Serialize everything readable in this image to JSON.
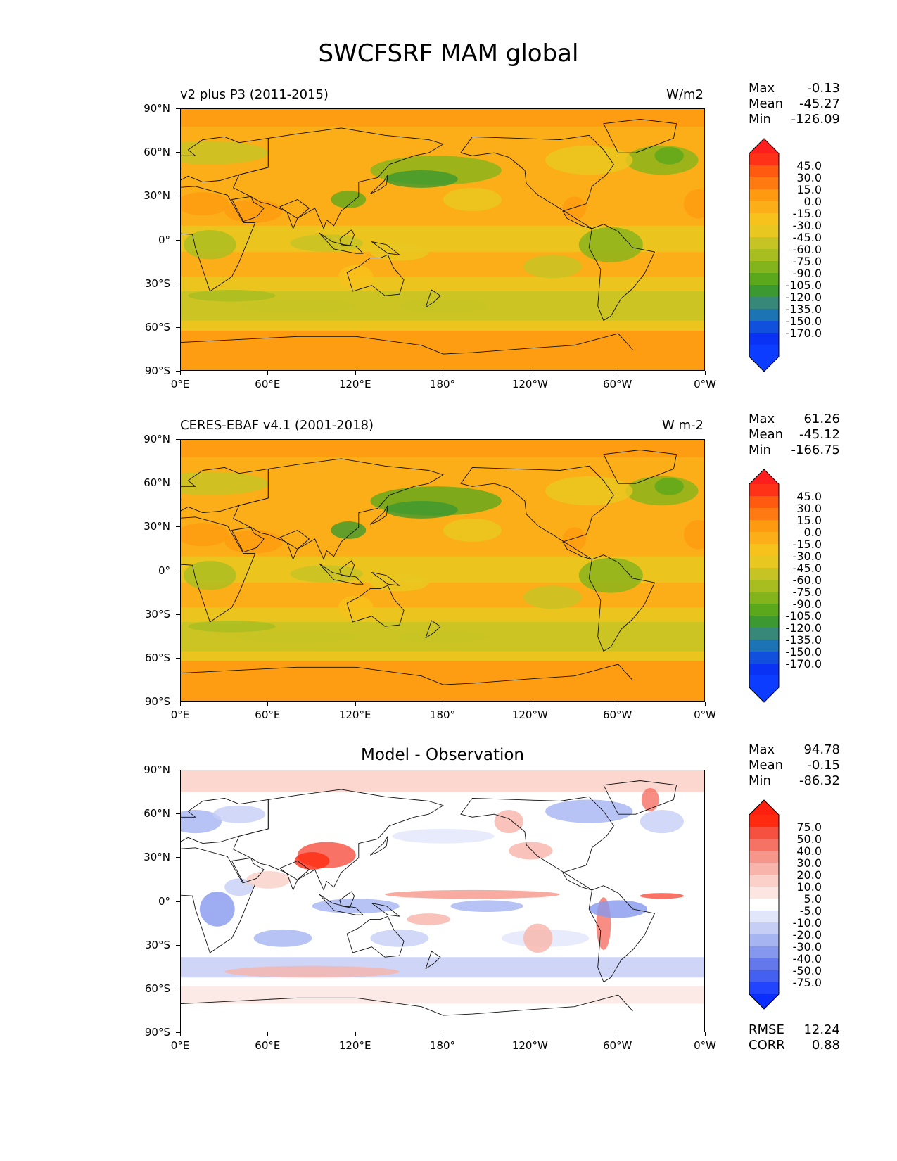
{
  "figure": {
    "title": "SWCFSRF MAM global"
  },
  "axes": {
    "yticks": [
      "90°N",
      "60°N",
      "30°N",
      "0°",
      "30°S",
      "60°S",
      "90°S"
    ],
    "xticks": [
      "0°E",
      "60°E",
      "120°E",
      "180°",
      "120°W",
      "60°W",
      "0°W"
    ]
  },
  "panels": [
    {
      "id": "test",
      "left_label": "v2 plus P3 (2011-2015)",
      "right_label": "W/m2",
      "center_title": "",
      "stats": [
        {
          "k": "Max",
          "v": "-0.13"
        },
        {
          "k": "Mean",
          "v": "-45.27"
        },
        {
          "k": "Min",
          "v": "-126.09"
        }
      ],
      "colorbar_levels": [
        "45.0",
        "30.0",
        "15.0",
        "0.0",
        "-15.0",
        "-30.0",
        "-45.0",
        "-60.0",
        "-75.0",
        "-90.0",
        "-105.0",
        "-120.0",
        "-135.0",
        "-150.0",
        "-170.0"
      ],
      "colorbar_colors": [
        "#ff3218",
        "#ff5a10",
        "#ff7a10",
        "#fe9a10",
        "#fcae18",
        "#f7c21c",
        "#e8c820",
        "#c6c424",
        "#a8be20",
        "#84b41c",
        "#5ca81c",
        "#3c9830",
        "#38887a",
        "#1c74b4",
        "#1050dc",
        "#0a32f5",
        "#0b3cff"
      ],
      "extend_colors": {
        "max": "#ff1e1e",
        "min": "#0b3cff"
      }
    },
    {
      "id": "reference",
      "left_label": "CERES-EBAF v4.1 (2001-2018)",
      "right_label": "W m-2",
      "center_title": "",
      "stats": [
        {
          "k": "Max",
          "v": "61.26"
        },
        {
          "k": "Mean",
          "v": "-45.12"
        },
        {
          "k": "Min",
          "v": "-166.75"
        }
      ],
      "colorbar_levels": [
        "45.0",
        "30.0",
        "15.0",
        "0.0",
        "-15.0",
        "-30.0",
        "-45.0",
        "-60.0",
        "-75.0",
        "-90.0",
        "-105.0",
        "-120.0",
        "-135.0",
        "-150.0",
        "-170.0"
      ],
      "colorbar_colors": [
        "#ff3218",
        "#ff5a10",
        "#ff7a10",
        "#fe9a10",
        "#fcae18",
        "#f7c21c",
        "#e8c820",
        "#c6c424",
        "#a8be20",
        "#84b41c",
        "#5ca81c",
        "#3c9830",
        "#38887a",
        "#1c74b4",
        "#1050dc",
        "#0a32f5",
        "#0b3cff"
      ],
      "extend_colors": {
        "max": "#ff1e1e",
        "min": "#0b3cff"
      }
    },
    {
      "id": "difference",
      "left_label": "",
      "right_label": "",
      "center_title": "Model - Observation",
      "stats": [
        {
          "k": "Max",
          "v": "94.78"
        },
        {
          "k": "Mean",
          "v": "-0.15"
        },
        {
          "k": "Min",
          "v": "-86.32"
        }
      ],
      "colorbar_levels": [
        "75.0",
        "50.0",
        "40.0",
        "30.0",
        "20.0",
        "10.0",
        "5.0",
        "-5.0",
        "-10.0",
        "-20.0",
        "-30.0",
        "-40.0",
        "-50.0",
        "-75.0"
      ],
      "colorbar_colors": [
        "#ff2a10",
        "#f65040",
        "#f67264",
        "#f6968a",
        "#f8b4aa",
        "#fad0c8",
        "#fce6e2",
        "#ffffff",
        "#e2e6fa",
        "#c6cef6",
        "#a6b4f2",
        "#8698ee",
        "#6478ec",
        "#4460f0",
        "#2244ff"
      ],
      "extend_colors": {
        "max": "#ff2010",
        "min": "#0a2eff"
      },
      "bottom_stats": [
        {
          "k": "RMSE",
          "v": "12.24"
        },
        {
          "k": "CORR",
          "v": "0.88"
        }
      ]
    }
  ]
}
